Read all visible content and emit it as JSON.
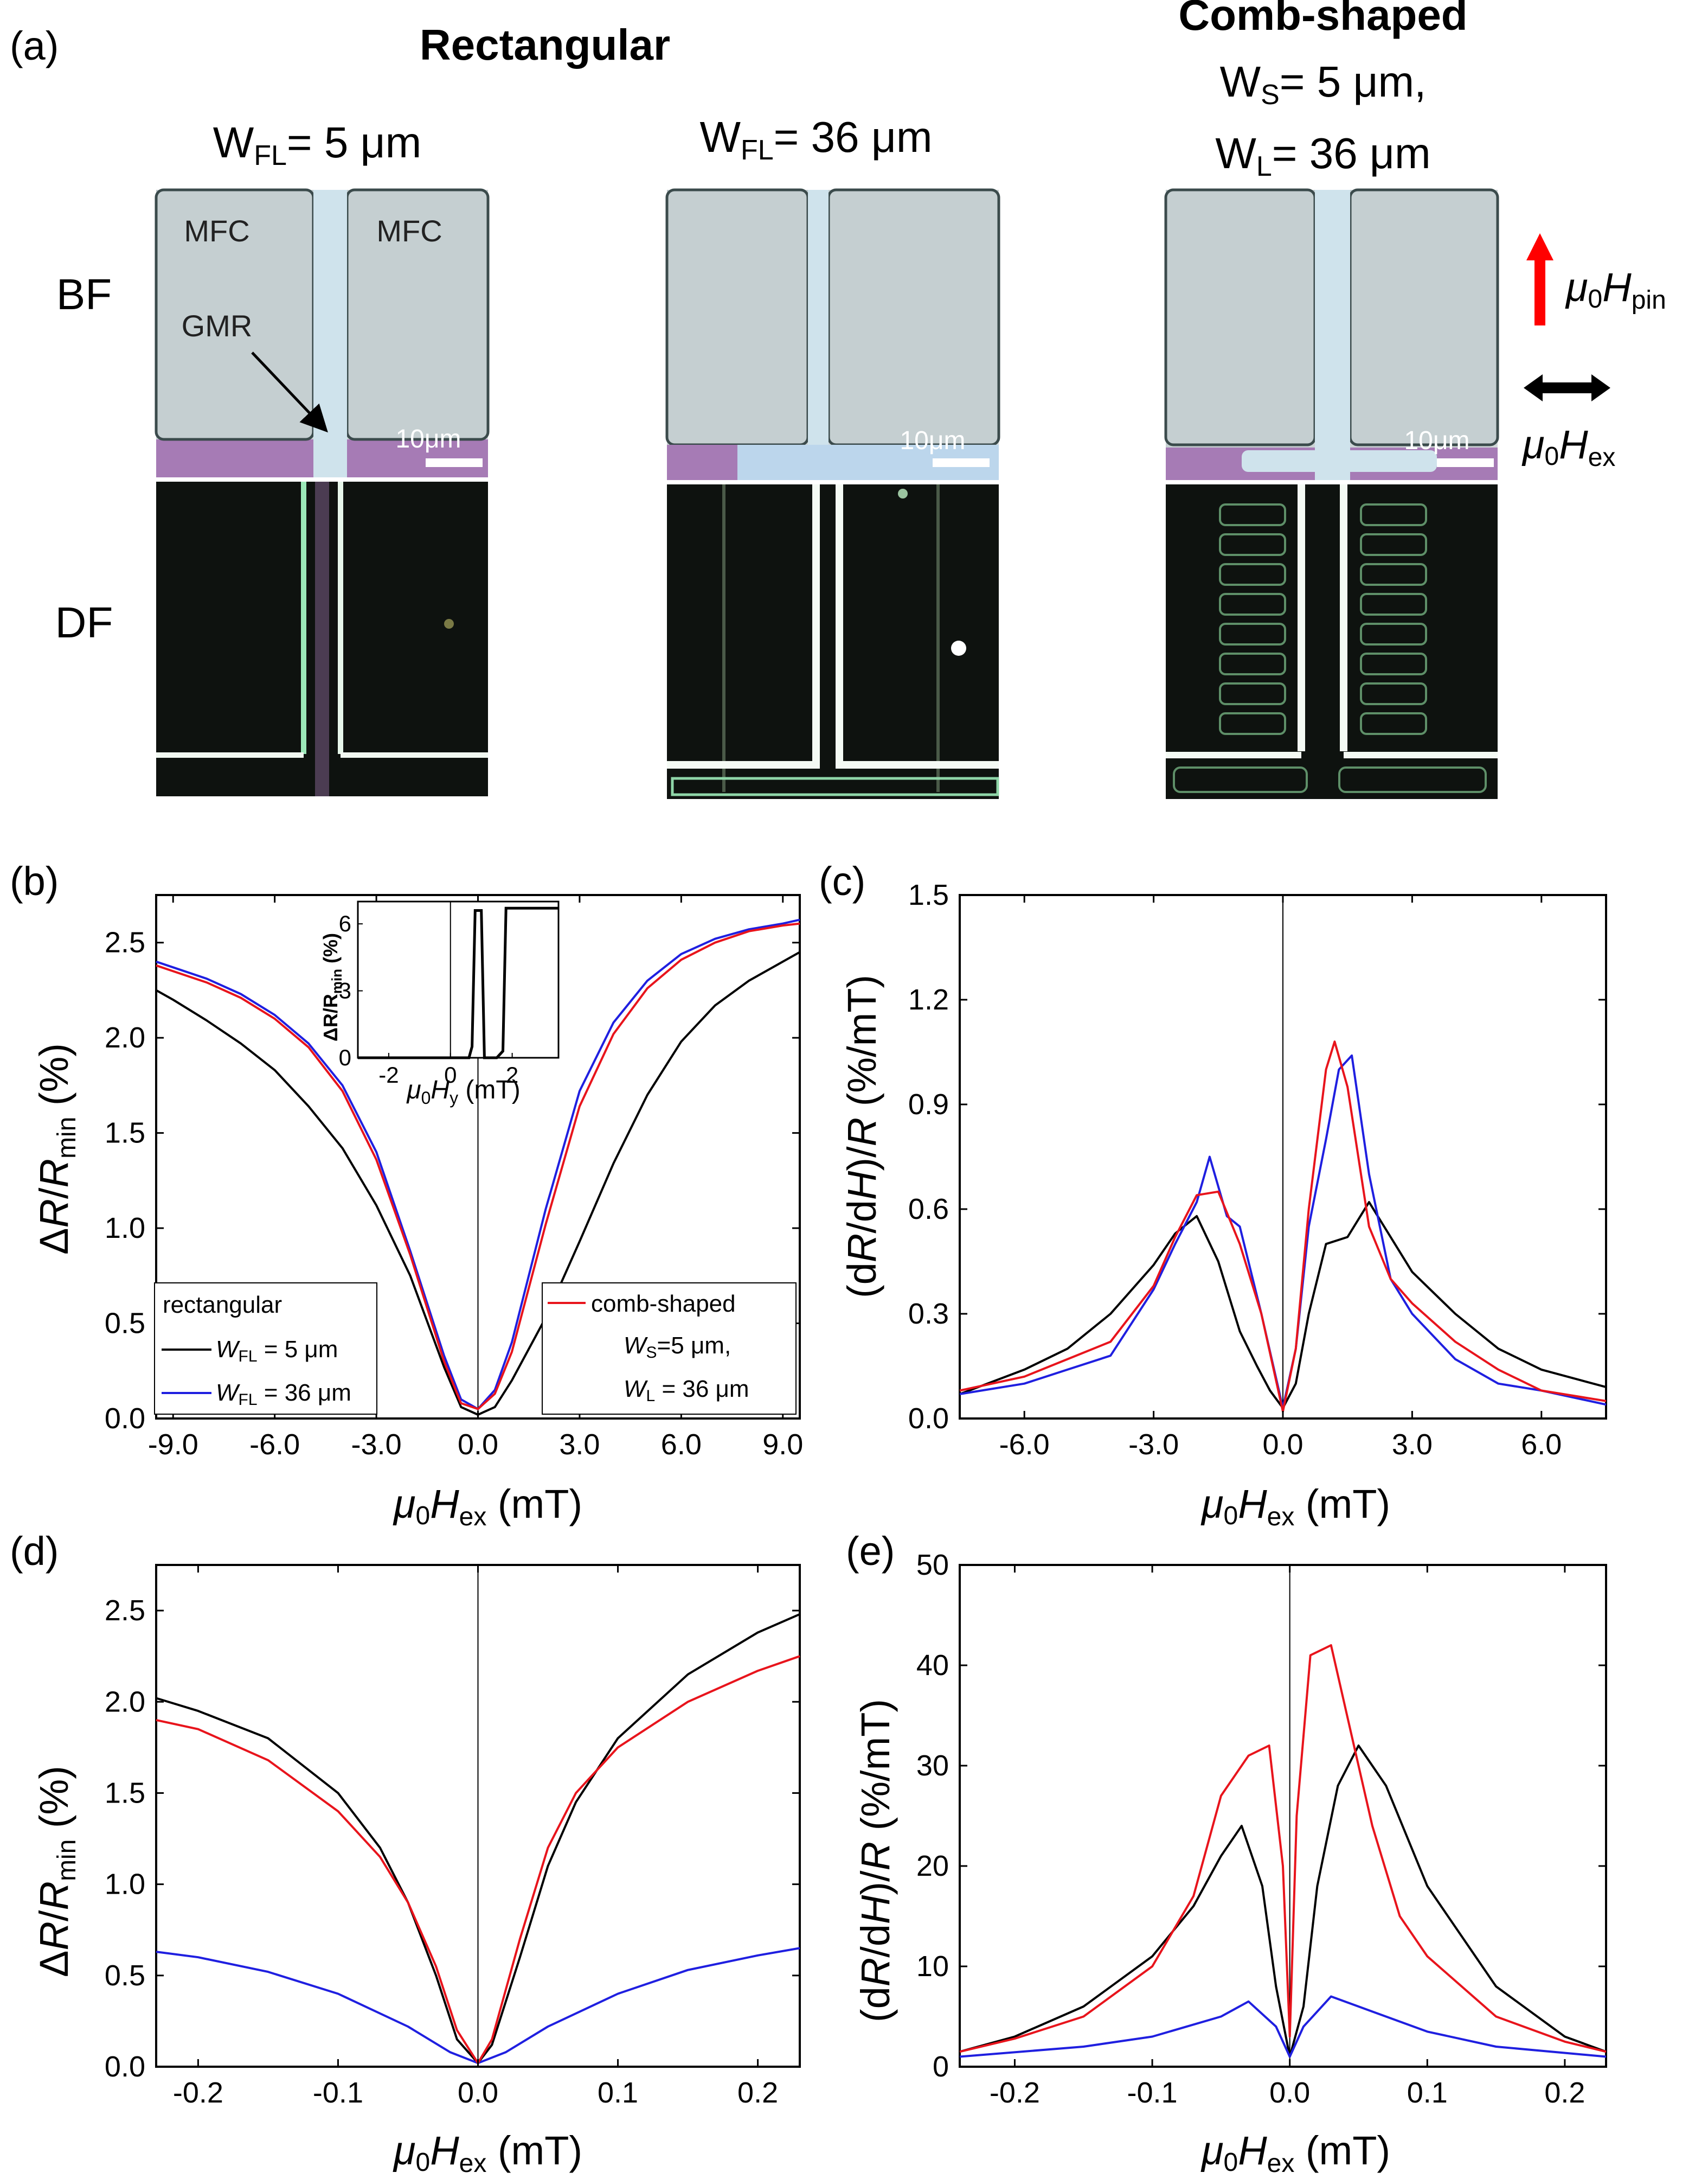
{
  "panel_labels": [
    "(a)",
    "(b)",
    "(c)",
    "(d)",
    "(e)"
  ],
  "figure_a": {
    "group_rect": "Rectangular",
    "group_comb": "Comb-shaped",
    "row_bf": "BF",
    "row_df": "DF",
    "mfc_label": "MFC",
    "gmr_label": "GMR",
    "scale_bar": "10μm",
    "col1_W": "W",
    "col1_sub": "FL",
    "col1_val": "= 5 μm",
    "col2_W": "W",
    "col2_sub": "FL",
    "col2_val": "= 36 μm",
    "col3a_W": "W",
    "col3a_sub": "S",
    "col3a_val": "= 5 μm,",
    "col3b_W": "W",
    "col3b_sub": "L",
    "col3b_val": "= 36 μm",
    "pin_mu": "μ",
    "pin_0": "0",
    "pin_H": "H",
    "pin_sub": "pin",
    "ex_mu": "μ",
    "ex_0": "0",
    "ex_H": "H",
    "ex_sub": "ex",
    "colors": {
      "pin_arrow": "#ff0000",
      "ex_arrow": "#000000",
      "bf_bg": "#c8d2d4",
      "purple": "#a57ab4",
      "df_bg": "#0e120f"
    }
  },
  "axes_text": {
    "xlabel_mu": "μ",
    "xlabel_0": "0",
    "xlabel_H": "H",
    "xlabel_sub": "ex",
    "xlabel_unit": " (mT)",
    "ylabel_b_delta": "Δ",
    "ylabel_b_R": "R",
    "ylabel_b_slash": "/",
    "ylabel_b_R2": "R",
    "ylabel_b_sub": "min",
    "ylabel_b_unit": " (%)",
    "ylabel_c_open": "(d",
    "ylabel_c_R": "R",
    "ylabel_c_d": "/d",
    "ylabel_c_H": "H",
    "ylabel_c_close": ")/",
    "ylabel_c_R2": "R",
    "ylabel_c_unit": " (%/mT)",
    "inset_ylabel": "ΔR/R",
    "inset_ysub": "min",
    "inset_yunit": " (%)",
    "inset_xlabel_mu": "μ",
    "inset_xlabel_0": "0",
    "inset_xlabel_H": "H",
    "inset_xlabel_sub": "y",
    "inset_xlabel_unit": " (mT)"
  },
  "legend_b": {
    "rect_title": "rectangular",
    "rect_black_W": "W",
    "rect_black_sub": "FL",
    "rect_black_val": " = 5 μm",
    "rect_blue_W": "W",
    "rect_blue_sub": "FL",
    "rect_blue_val": " = 36 μm",
    "comb_title": "comb-shaped",
    "comb_l2_W": "W",
    "comb_l2_sub": "S",
    "comb_l2_val": "=5 μm,",
    "comb_l3_W": "W",
    "comb_l3_sub": "L",
    "comb_l3_val": " = 36 μm"
  },
  "colors": {
    "black": "#000000",
    "blue": "#1f1fe0",
    "red": "#e8141c"
  },
  "chart_data": [
    {
      "panel": "b",
      "type": "line",
      "xlim": [
        -9.5,
        9.5
      ],
      "ylim": [
        0,
        2.75
      ],
      "xticks": [
        "-9.0",
        "-6.0",
        "-3.0",
        "0.0",
        "3.0",
        "6.0",
        "9.0"
      ],
      "yticks": [
        "0.0",
        "0.5",
        "1.0",
        "1.5",
        "2.0",
        "2.5"
      ],
      "series": [
        {
          "name": "rectangular W_FL = 5 μm",
          "color": "black",
          "x": [
            -9.5,
            -9,
            -8,
            -7,
            -6,
            -5,
            -4,
            -3,
            -2,
            -1,
            -0.5,
            0,
            0.5,
            1,
            2,
            3,
            4,
            5,
            6,
            7,
            8,
            9,
            9.5
          ],
          "y": [
            2.25,
            2.2,
            2.09,
            1.97,
            1.83,
            1.64,
            1.42,
            1.12,
            0.75,
            0.27,
            0.06,
            0.02,
            0.06,
            0.2,
            0.53,
            0.93,
            1.34,
            1.7,
            1.98,
            2.17,
            2.3,
            2.4,
            2.45
          ]
        },
        {
          "name": "rectangular W_FL = 36 μm",
          "color": "blue",
          "x": [
            -9.5,
            -9,
            -8,
            -7,
            -6,
            -5,
            -4,
            -3,
            -2,
            -1,
            -0.5,
            0,
            0.5,
            1,
            2,
            3,
            4,
            5,
            6,
            7,
            8,
            9,
            9.5
          ],
          "y": [
            2.4,
            2.37,
            2.31,
            2.23,
            2.12,
            1.97,
            1.75,
            1.4,
            0.88,
            0.33,
            0.1,
            0.05,
            0.15,
            0.4,
            1.1,
            1.72,
            2.08,
            2.3,
            2.44,
            2.52,
            2.57,
            2.6,
            2.62
          ]
        },
        {
          "name": "comb-shaped",
          "color": "red",
          "x": [
            -9.5,
            -9,
            -8,
            -7,
            -6,
            -5,
            -4,
            -3,
            -2,
            -1,
            -0.5,
            0,
            0.5,
            1,
            2,
            3,
            4,
            5,
            6,
            7,
            8,
            9,
            9.5
          ],
          "y": [
            2.38,
            2.35,
            2.29,
            2.21,
            2.1,
            1.95,
            1.72,
            1.36,
            0.86,
            0.3,
            0.08,
            0.05,
            0.13,
            0.35,
            1.02,
            1.64,
            2.02,
            2.26,
            2.41,
            2.5,
            2.56,
            2.59,
            2.6
          ]
        }
      ],
      "inset": {
        "xlim": [
          -3,
          3.5
        ],
        "ylim": [
          0,
          7
        ],
        "xticks": [
          "-2",
          "0",
          "2"
        ],
        "yticks": [
          "0",
          "3",
          "6"
        ],
        "x": [
          -3,
          0.6,
          0.7,
          0.8,
          1.0,
          1.1,
          1.5,
          1.7,
          1.8,
          3.5
        ],
        "y": [
          0,
          0,
          0.5,
          6.6,
          6.6,
          0,
          0,
          0.3,
          6.7,
          6.7
        ]
      }
    },
    {
      "panel": "c",
      "type": "line",
      "xlim": [
        -7.5,
        7.5
      ],
      "ylim": [
        0,
        1.5
      ],
      "xticks": [
        "-6.0",
        "-3.0",
        "0.0",
        "3.0",
        "6.0"
      ],
      "yticks": [
        "0.0",
        "0.3",
        "0.6",
        "0.9",
        "1.2",
        "1.5"
      ],
      "series": [
        {
          "color": "black",
          "x": [
            -7.5,
            -6,
            -5,
            -4,
            -3,
            -2.5,
            -2,
            -1.5,
            -1,
            -0.6,
            -0.3,
            0,
            0.3,
            0.6,
            1,
            1.5,
            2,
            2.5,
            3,
            4,
            5,
            6,
            7.5
          ],
          "y": [
            0.07,
            0.14,
            0.2,
            0.3,
            0.44,
            0.53,
            0.58,
            0.45,
            0.25,
            0.15,
            0.08,
            0.03,
            0.1,
            0.3,
            0.5,
            0.52,
            0.62,
            0.52,
            0.42,
            0.3,
            0.2,
            0.14,
            0.09
          ]
        },
        {
          "color": "blue",
          "x": [
            -7.5,
            -6,
            -5,
            -4,
            -3,
            -2.5,
            -2,
            -1.7,
            -1.3,
            -1,
            -0.5,
            0,
            0.3,
            0.6,
            1,
            1.3,
            1.6,
            2,
            2.5,
            3,
            4,
            5,
            6,
            7.5
          ],
          "y": [
            0.07,
            0.1,
            0.14,
            0.18,
            0.37,
            0.5,
            0.62,
            0.75,
            0.58,
            0.55,
            0.3,
            0.03,
            0.2,
            0.55,
            0.8,
            1.0,
            1.04,
            0.7,
            0.4,
            0.3,
            0.17,
            0.1,
            0.08,
            0.04
          ]
        },
        {
          "color": "red",
          "x": [
            -7.5,
            -6,
            -5,
            -4,
            -3,
            -2.5,
            -2,
            -1.5,
            -1,
            -0.5,
            0,
            0.3,
            0.6,
            1,
            1.2,
            1.5,
            2,
            2.5,
            3,
            4,
            5,
            6,
            7.5
          ],
          "y": [
            0.08,
            0.12,
            0.17,
            0.22,
            0.38,
            0.52,
            0.64,
            0.65,
            0.5,
            0.3,
            0.02,
            0.2,
            0.6,
            1.0,
            1.08,
            0.95,
            0.55,
            0.4,
            0.33,
            0.22,
            0.14,
            0.08,
            0.05
          ]
        }
      ]
    },
    {
      "panel": "d",
      "type": "line",
      "xlim": [
        -0.23,
        0.23
      ],
      "ylim": [
        0,
        2.75
      ],
      "xticks": [
        "-0.2",
        "-0.1",
        "0.0",
        "0.1",
        "0.2"
      ],
      "yticks": [
        "0.0",
        "0.5",
        "1.0",
        "1.5",
        "2.0",
        "2.5"
      ],
      "series": [
        {
          "color": "black",
          "x": [
            -0.23,
            -0.2,
            -0.15,
            -0.1,
            -0.07,
            -0.05,
            -0.03,
            -0.015,
            0,
            0.01,
            0.03,
            0.05,
            0.07,
            0.1,
            0.15,
            0.2,
            0.23
          ],
          "y": [
            2.02,
            1.95,
            1.8,
            1.5,
            1.2,
            0.9,
            0.5,
            0.15,
            0.02,
            0.12,
            0.6,
            1.1,
            1.45,
            1.8,
            2.15,
            2.38,
            2.48
          ]
        },
        {
          "color": "blue",
          "x": [
            -0.23,
            -0.2,
            -0.15,
            -0.1,
            -0.05,
            -0.02,
            0,
            0.02,
            0.05,
            0.1,
            0.15,
            0.2,
            0.23
          ],
          "y": [
            0.63,
            0.6,
            0.52,
            0.4,
            0.22,
            0.08,
            0.02,
            0.08,
            0.22,
            0.4,
            0.53,
            0.61,
            0.65
          ]
        },
        {
          "color": "red",
          "x": [
            -0.23,
            -0.2,
            -0.15,
            -0.1,
            -0.07,
            -0.05,
            -0.03,
            -0.015,
            0,
            0.01,
            0.03,
            0.05,
            0.07,
            0.1,
            0.15,
            0.2,
            0.23
          ],
          "y": [
            1.9,
            1.85,
            1.68,
            1.4,
            1.15,
            0.9,
            0.55,
            0.2,
            0.02,
            0.15,
            0.7,
            1.2,
            1.5,
            1.75,
            2.0,
            2.17,
            2.25
          ]
        }
      ]
    },
    {
      "panel": "e",
      "type": "line",
      "xlim": [
        -0.24,
        0.23
      ],
      "ylim": [
        0,
        50
      ],
      "xticks": [
        "-0.2",
        "-0.1",
        "0.0",
        "0.1",
        "0.2"
      ],
      "yticks": [
        "0",
        "10",
        "20",
        "30",
        "40",
        "50"
      ],
      "series": [
        {
          "color": "black",
          "x": [
            -0.24,
            -0.2,
            -0.15,
            -0.1,
            -0.07,
            -0.05,
            -0.035,
            -0.02,
            -0.01,
            0,
            0.01,
            0.02,
            0.035,
            0.05,
            0.07,
            0.1,
            0.15,
            0.2,
            0.23
          ],
          "y": [
            1.5,
            3,
            6,
            11,
            16,
            21,
            24,
            18,
            8,
            1,
            6,
            18,
            28,
            32,
            28,
            18,
            8,
            3,
            1.5
          ]
        },
        {
          "color": "blue",
          "x": [
            -0.24,
            -0.15,
            -0.1,
            -0.05,
            -0.03,
            -0.01,
            0,
            0.01,
            0.03,
            0.05,
            0.1,
            0.15,
            0.23
          ],
          "y": [
            1,
            2,
            3,
            5,
            6.5,
            4,
            1,
            4,
            7,
            6,
            3.5,
            2,
            1
          ]
        },
        {
          "color": "red",
          "x": [
            -0.24,
            -0.2,
            -0.15,
            -0.1,
            -0.07,
            -0.05,
            -0.03,
            -0.015,
            -0.005,
            0,
            0.005,
            0.015,
            0.03,
            0.045,
            0.06,
            0.08,
            0.1,
            0.15,
            0.2,
            0.23
          ],
          "y": [
            1.5,
            2.8,
            5,
            10,
            17,
            27,
            31,
            32,
            20,
            3,
            25,
            41,
            42,
            33,
            24,
            15,
            11,
            5,
            2.5,
            1.5
          ]
        }
      ]
    }
  ]
}
